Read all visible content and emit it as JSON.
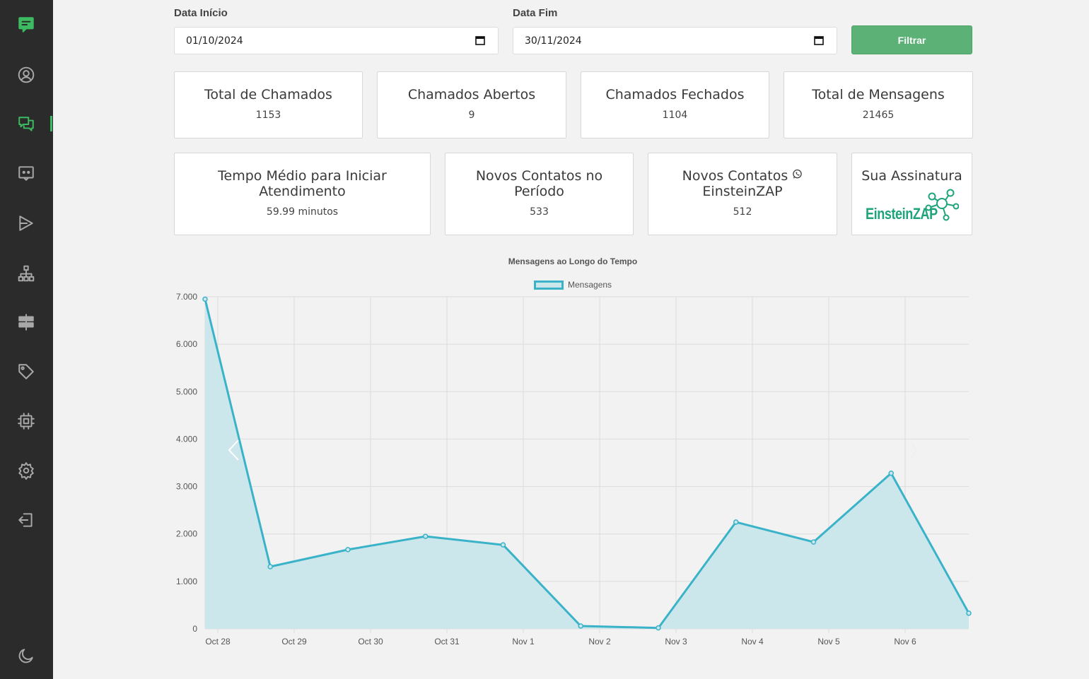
{
  "sidebar": {
    "icons": [
      "chat-square-icon",
      "user-circle-icon",
      "chats-icon",
      "bot-message-icon",
      "play-forward-icon",
      "hierarchy-icon",
      "signpost-icon",
      "tag-icon",
      "chip-icon",
      "gear-icon",
      "logout-icon",
      "moon-icon"
    ],
    "accent": "#3dbb62"
  },
  "filters": {
    "start_label": "Data Início",
    "start_value": "01/10/2024",
    "end_label": "Data Fim",
    "end_value": "30/11/2024",
    "button_label": "Filtrar",
    "button_color": "#5cb176"
  },
  "cards": {
    "total_chamados": {
      "title": "Total de Chamados",
      "value": "1153"
    },
    "chamados_abertos": {
      "title": "Chamados Abertos",
      "value": "9"
    },
    "chamados_fechados": {
      "title": "Chamados Fechados",
      "value": "1104"
    },
    "total_mensagens": {
      "title": "Total de Mensagens",
      "value": "21465"
    },
    "tempo_medio": {
      "title": "Tempo Médio para Iniciar Atendimento",
      "value": "59.99 minutos"
    },
    "novos_contatos": {
      "title": "Novos Contatos no Período",
      "value": "533"
    },
    "novos_contatos_zap": {
      "title_line1": "Novos Contatos",
      "title_line2": "EinsteinZAP",
      "value": "512"
    },
    "assinatura": {
      "title": "Sua Assinatura",
      "logo_text": "EinsteinZAP"
    }
  },
  "chart_data": {
    "type": "line",
    "title": "Mensagens ao Longo do Tempo",
    "categories": [
      "Oct 28",
      "Oct 29",
      "Oct 30",
      "Oct 31",
      "Nov 1",
      "Nov 2",
      "Nov 3",
      "Nov 4",
      "Nov 5",
      "Nov 6"
    ],
    "series": [
      {
        "name": "Mensagens",
        "x": [
          0,
          0.84,
          1.84,
          2.84,
          3.84,
          4.84,
          5.84,
          6.84,
          7.84,
          8.84,
          9.84
        ],
        "values": [
          6950,
          1310,
          1670,
          1950,
          1770,
          60,
          20,
          2250,
          1830,
          3280,
          330
        ],
        "color": "#3ab3c9",
        "fill": "#cce7ec"
      }
    ],
    "yticks": [
      "0",
      "1.000",
      "2.000",
      "3.000",
      "4.000",
      "5.000",
      "6.000",
      "7.000"
    ],
    "ylim": [
      0,
      7000
    ],
    "grid": true,
    "legend_position": "top"
  }
}
